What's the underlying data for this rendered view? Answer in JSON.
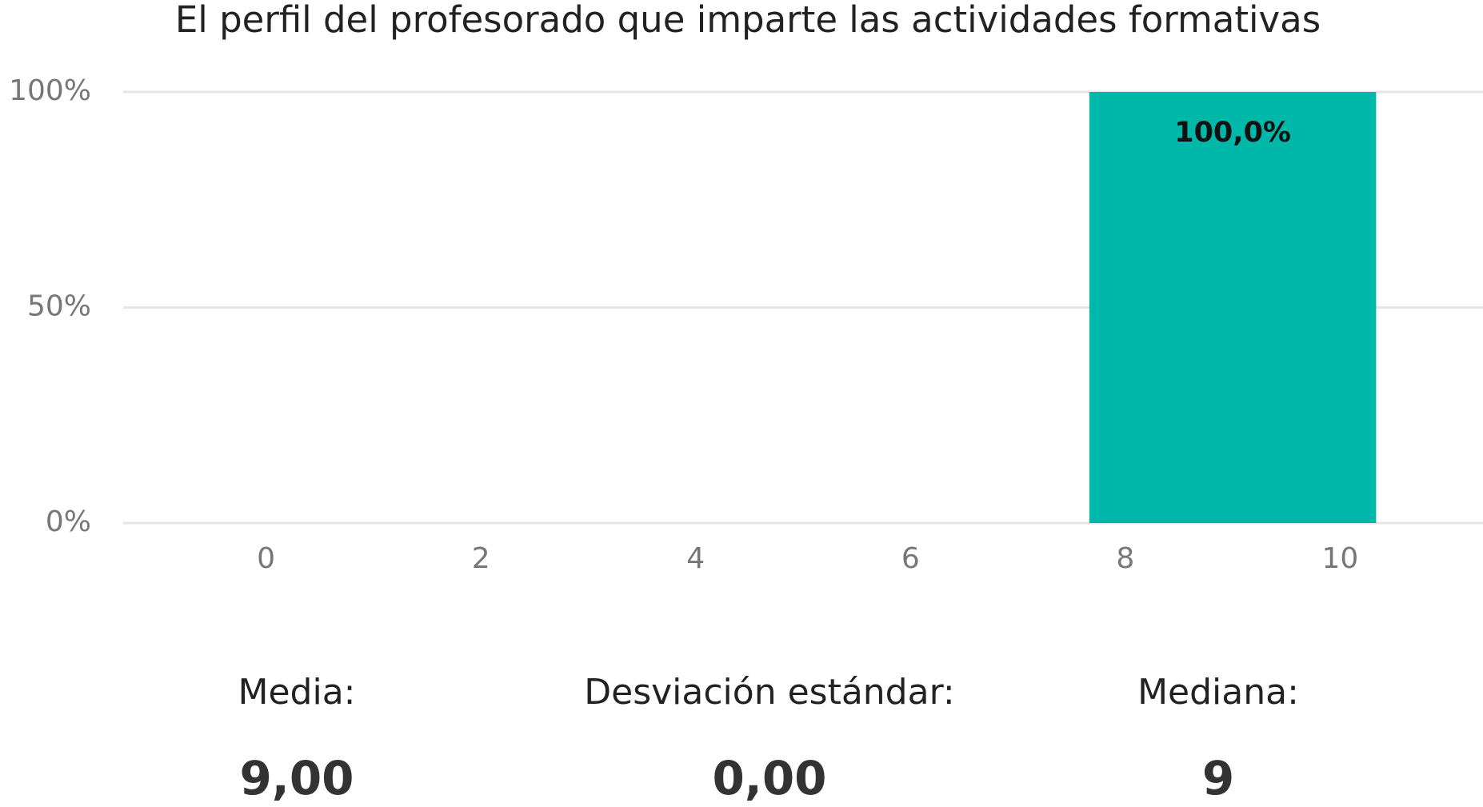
{
  "chart_data": {
    "type": "bar",
    "title": "El perfil del profesorado que imparte las actividades formativas",
    "x": [
      9
    ],
    "values": [
      100
    ],
    "value_labels": [
      "100,0%"
    ],
    "color": "#00b8a9",
    "xlim": [
      -1.33,
      11.33
    ],
    "xticks": [
      0,
      2,
      4,
      6,
      8,
      10
    ],
    "ylim": [
      0,
      100
    ],
    "yticks": [
      {
        "value": 0,
        "label": "0%"
      },
      {
        "value": 50,
        "label": "50%"
      },
      {
        "value": 100,
        "label": "100%"
      }
    ],
    "grid": true
  },
  "stats": [
    {
      "label": "Media:",
      "value": "9,00"
    },
    {
      "label": "Desviación estándar:",
      "value": "0,00"
    },
    {
      "label": "Mediana:",
      "value": "9"
    }
  ]
}
